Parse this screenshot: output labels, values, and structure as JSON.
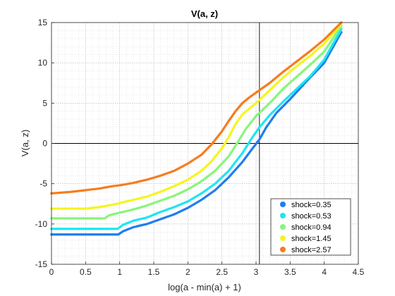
{
  "chart_data": {
    "type": "scatter",
    "title": "V(a, z)",
    "xlabel": "log(a - min(a) + 1)",
    "ylabel": "V(a, z)",
    "xlim": [
      0,
      4.5
    ],
    "ylim": [
      -15,
      15
    ],
    "x_ticks": [
      "0",
      "0.5",
      "1",
      "1.5",
      "2",
      "2.5",
      "3",
      "3.5",
      "4",
      "4.5"
    ],
    "y_ticks": [
      "-15",
      "-10",
      "-5",
      "0",
      "5",
      "10",
      "15"
    ],
    "grid": "on",
    "minor_grid": "on",
    "legend_position": "bottom-right",
    "reference_lines": {
      "x": 3.05,
      "y": 0
    },
    "series": [
      {
        "name": "shock=0.35",
        "color": "#1f7cf0",
        "points": [
          [
            0,
            -11.3
          ],
          [
            0.5,
            -11.3
          ],
          [
            0.98,
            -11.3
          ],
          [
            1.05,
            -10.9
          ],
          [
            1.2,
            -10.4
          ],
          [
            1.4,
            -10.0
          ],
          [
            1.6,
            -9.4
          ],
          [
            1.8,
            -8.8
          ],
          [
            2.0,
            -8.0
          ],
          [
            2.2,
            -7.0
          ],
          [
            2.4,
            -5.8
          ],
          [
            2.6,
            -4.2
          ],
          [
            2.8,
            -2.3
          ],
          [
            2.95,
            -0.6
          ],
          [
            3.05,
            0.5
          ],
          [
            3.15,
            2.0
          ],
          [
            3.3,
            3.8
          ],
          [
            3.5,
            5.5
          ],
          [
            3.75,
            7.8
          ],
          [
            4.0,
            10.0
          ],
          [
            4.25,
            13.8
          ]
        ]
      },
      {
        "name": "shock=0.53",
        "color": "#1ee6ef",
        "points": [
          [
            0,
            -10.6
          ],
          [
            0.5,
            -10.6
          ],
          [
            0.97,
            -10.6
          ],
          [
            1.05,
            -10.1
          ],
          [
            1.2,
            -9.6
          ],
          [
            1.4,
            -9.2
          ],
          [
            1.6,
            -8.5
          ],
          [
            1.8,
            -7.9
          ],
          [
            2.0,
            -7.2
          ],
          [
            2.2,
            -6.2
          ],
          [
            2.4,
            -5.0
          ],
          [
            2.6,
            -3.4
          ],
          [
            2.8,
            -1.2
          ],
          [
            2.95,
            0.8
          ],
          [
            3.05,
            2.0
          ],
          [
            3.2,
            3.5
          ],
          [
            3.4,
            5.2
          ],
          [
            3.6,
            6.8
          ],
          [
            3.8,
            8.4
          ],
          [
            4.0,
            10.4
          ],
          [
            4.25,
            14.2
          ]
        ]
      },
      {
        "name": "shock=0.94",
        "color": "#88f57a",
        "points": [
          [
            0,
            -9.3
          ],
          [
            0.5,
            -9.3
          ],
          [
            0.78,
            -9.3
          ],
          [
            0.85,
            -8.9
          ],
          [
            1.0,
            -8.6
          ],
          [
            1.2,
            -8.2
          ],
          [
            1.4,
            -7.7
          ],
          [
            1.6,
            -7.1
          ],
          [
            1.8,
            -6.5
          ],
          [
            2.0,
            -5.7
          ],
          [
            2.2,
            -4.7
          ],
          [
            2.4,
            -3.4
          ],
          [
            2.6,
            -1.6
          ],
          [
            2.75,
            0.4
          ],
          [
            2.85,
            1.8
          ],
          [
            3.0,
            3.4
          ],
          [
            3.2,
            5.0
          ],
          [
            3.4,
            6.8
          ],
          [
            3.6,
            8.3
          ],
          [
            3.8,
            9.8
          ],
          [
            4.0,
            11.4
          ],
          [
            4.25,
            14.6
          ]
        ]
      },
      {
        "name": "shock=1.45",
        "color": "#f5f51e",
        "points": [
          [
            0,
            -8.1
          ],
          [
            0.3,
            -8.1
          ],
          [
            0.5,
            -8.1
          ],
          [
            0.7,
            -7.9
          ],
          [
            0.9,
            -7.6
          ],
          [
            1.0,
            -7.4
          ],
          [
            1.2,
            -7.0
          ],
          [
            1.4,
            -6.6
          ],
          [
            1.6,
            -6.0
          ],
          [
            1.8,
            -5.3
          ],
          [
            2.0,
            -4.5
          ],
          [
            2.2,
            -3.4
          ],
          [
            2.35,
            -2.2
          ],
          [
            2.5,
            -0.6
          ],
          [
            2.6,
            0.8
          ],
          [
            2.7,
            2.4
          ],
          [
            2.8,
            3.6
          ],
          [
            3.0,
            5.0
          ],
          [
            3.2,
            6.6
          ],
          [
            3.4,
            8.2
          ],
          [
            3.6,
            9.6
          ],
          [
            3.8,
            10.9
          ],
          [
            4.0,
            12.4
          ],
          [
            4.25,
            14.8
          ]
        ]
      },
      {
        "name": "shock=2.57",
        "color": "#f57c1e",
        "points": [
          [
            0,
            -6.2
          ],
          [
            0.3,
            -6.0
          ],
          [
            0.5,
            -5.8
          ],
          [
            0.7,
            -5.6
          ],
          [
            0.9,
            -5.3
          ],
          [
            1.0,
            -5.2
          ],
          [
            1.2,
            -4.9
          ],
          [
            1.4,
            -4.5
          ],
          [
            1.6,
            -4.0
          ],
          [
            1.8,
            -3.4
          ],
          [
            2.0,
            -2.5
          ],
          [
            2.2,
            -1.4
          ],
          [
            2.35,
            -0.1
          ],
          [
            2.5,
            1.5
          ],
          [
            2.6,
            2.8
          ],
          [
            2.7,
            4.0
          ],
          [
            2.8,
            5.0
          ],
          [
            2.9,
            5.7
          ],
          [
            3.0,
            6.3
          ],
          [
            3.2,
            7.5
          ],
          [
            3.4,
            8.9
          ],
          [
            3.6,
            10.2
          ],
          [
            3.8,
            11.5
          ],
          [
            4.0,
            12.9
          ],
          [
            4.25,
            15.0
          ]
        ]
      }
    ]
  }
}
